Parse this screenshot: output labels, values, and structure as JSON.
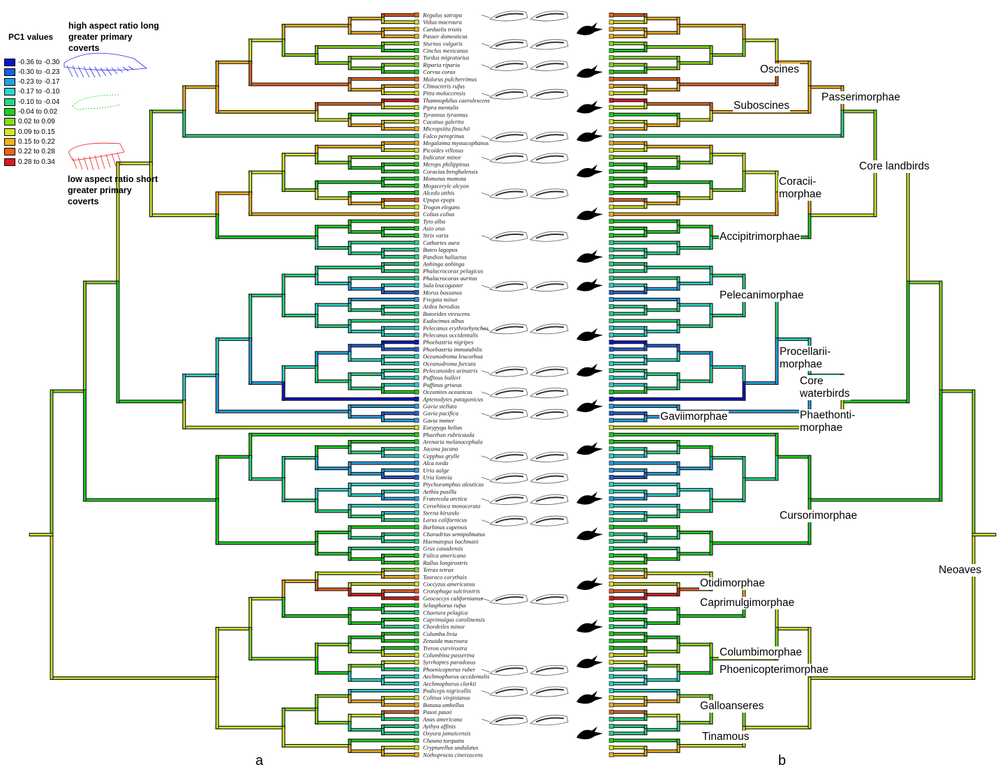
{
  "legend": {
    "title": "PC1 values",
    "bins": [
      {
        "label": "-0.36 to -0.30",
        "color": "#0d12c8"
      },
      {
        "label": "-0.30 to -0.23",
        "color": "#1f5de0"
      },
      {
        "label": "-0.23 to -0.17",
        "color": "#21a4e4"
      },
      {
        "label": "-0.17 to -0.10",
        "color": "#2ad6c9"
      },
      {
        "label": "-0.10 to -0.04",
        "color": "#26d884"
      },
      {
        "label": "-0.04 to 0.02",
        "color": "#1bd21c"
      },
      {
        "label": "0.02 to 0.09",
        "color": "#86da1f"
      },
      {
        "label": "0.09 to 0.15",
        "color": "#d6e622"
      },
      {
        "label": "0.15 to 0.22",
        "color": "#f3b11b"
      },
      {
        "label": "0.22 to 0.28",
        "color": "#e8621b"
      },
      {
        "label": "0.28 to 0.34",
        "color": "#e0181a"
      }
    ],
    "high_note": "high aspect ratio long greater primary coverts",
    "low_note": "low aspect ratio short greater primary coverts"
  },
  "panels": {
    "a": "a",
    "b": "b"
  },
  "taxa": [
    {
      "name": "Regulus satrapa",
      "pc": 9
    },
    {
      "name": "Vidua macroura",
      "pc": 7
    },
    {
      "name": "Carduelis tristis",
      "pc": 8
    },
    {
      "name": "Passer domesticus",
      "pc": 8
    },
    {
      "name": "Sturnus vulgaris",
      "pc": 6
    },
    {
      "name": "Cinclus mexicanus",
      "pc": 5
    },
    {
      "name": "Turdus migratorius",
      "pc": 6
    },
    {
      "name": "Riparia riparia",
      "pc": 6
    },
    {
      "name": "Corvus corax",
      "pc": 5
    },
    {
      "name": "Malurus pulcherrimus",
      "pc": 9
    },
    {
      "name": "Climacteris rufus",
      "pc": 8
    },
    {
      "name": "Pitta moluccensis",
      "pc": 7
    },
    {
      "name": "Thamnophilus caerulescens",
      "pc": 10
    },
    {
      "name": "Pipra mentalis",
      "pc": 7
    },
    {
      "name": "Tyrannus tyrannus",
      "pc": 5
    },
    {
      "name": "Cacatua galerita",
      "pc": 7
    },
    {
      "name": "Micropsitta finschii",
      "pc": 8
    },
    {
      "name": "Falco peregrinus",
      "pc": 4
    },
    {
      "name": "Megalaima mystacophanos",
      "pc": 8
    },
    {
      "name": "Picoides villosus",
      "pc": 7
    },
    {
      "name": "Indicator minor",
      "pc": 6
    },
    {
      "name": "Merops philippinus",
      "pc": 5
    },
    {
      "name": "Coracias benghalensis",
      "pc": 5
    },
    {
      "name": "Momotus momota",
      "pc": 5
    },
    {
      "name": "Megaceryle alcyon",
      "pc": 5
    },
    {
      "name": "Alcedo atthis",
      "pc": 5
    },
    {
      "name": "Upupa epops",
      "pc": 9
    },
    {
      "name": "Trogon elegans",
      "pc": 7
    },
    {
      "name": "Colius colius",
      "pc": 8
    },
    {
      "name": "Tyto alba",
      "pc": 5
    },
    {
      "name": "Asio otus",
      "pc": 5
    },
    {
      "name": "Strix varia",
      "pc": 5
    },
    {
      "name": "Cathartes aura",
      "pc": 4
    },
    {
      "name": "Buteo lagopus",
      "pc": 4
    },
    {
      "name": "Pandion haliaetus",
      "pc": 4
    },
    {
      "name": "Anhinga anhinga",
      "pc": 4
    },
    {
      "name": "Phalacrocorax pelagicus",
      "pc": 4
    },
    {
      "name": "Phalacrocorax auritus",
      "pc": 4
    },
    {
      "name": "Sula leucogaster",
      "pc": 3
    },
    {
      "name": "Morus bassanus",
      "pc": 1
    },
    {
      "name": "Fregata minor",
      "pc": 2
    },
    {
      "name": "Ardea herodias",
      "pc": 4
    },
    {
      "name": "Butorides virescens",
      "pc": 4
    },
    {
      "name": "Eudocimus albus",
      "pc": 4
    },
    {
      "name": "Pelecanus erythrorhynchos",
      "pc": 3
    },
    {
      "name": "Pelecanus occidentalis",
      "pc": 3
    },
    {
      "name": "Phoebastria nigripes",
      "pc": 0
    },
    {
      "name": "Phoebastria immutabilis",
      "pc": 1
    },
    {
      "name": "Oceanodroma leucorhoa",
      "pc": 3
    },
    {
      "name": "Oceanodroma furcata",
      "pc": 3
    },
    {
      "name": "Pelecanoides urinatrix",
      "pc": 4
    },
    {
      "name": "Puffinus bulleri",
      "pc": 3
    },
    {
      "name": "Puffinus griseus",
      "pc": 3
    },
    {
      "name": "Oceanites oceanicus",
      "pc": 5
    },
    {
      "name": "Aptenodytes patagonicus",
      "pc": 0
    },
    {
      "name": "Gavia stellata",
      "pc": 2
    },
    {
      "name": "Gavia pacifica",
      "pc": 1
    },
    {
      "name": "Gavia immer",
      "pc": 2
    },
    {
      "name": "Eurypyga helias",
      "pc": 7
    },
    {
      "name": "Phaethon rubricauda",
      "pc": 5
    },
    {
      "name": "Arenaria melanocephala",
      "pc": 5
    },
    {
      "name": "Jacana jacana",
      "pc": 4
    },
    {
      "name": "Cepphus grylle",
      "pc": 3
    },
    {
      "name": "Alca torda",
      "pc": 2
    },
    {
      "name": "Uria aalge",
      "pc": 2
    },
    {
      "name": "Uria lomvia",
      "pc": 1
    },
    {
      "name": "Ptychoramphus aleuticus",
      "pc": 3
    },
    {
      "name": "Aethia pusilla",
      "pc": 3
    },
    {
      "name": "Fratercula arctica",
      "pc": 2
    },
    {
      "name": "Cerorhinca monocerata",
      "pc": 3
    },
    {
      "name": "Sterna hirundo",
      "pc": 3
    },
    {
      "name": "Larus californicus",
      "pc": 4
    },
    {
      "name": "Burhinus capensis",
      "pc": 5
    },
    {
      "name": "Charadrius semipalmatus",
      "pc": 4
    },
    {
      "name": "Haematopus bachmani",
      "pc": 4
    },
    {
      "name": "Grus canadensis",
      "pc": 4
    },
    {
      "name": "Fulica americana",
      "pc": 5
    },
    {
      "name": "Rallus longirostris",
      "pc": 5
    },
    {
      "name": "Tetrax tetrax",
      "pc": 6
    },
    {
      "name": "Tauraco corythaix",
      "pc": 8
    },
    {
      "name": "Coccyzus americanus",
      "pc": 7
    },
    {
      "name": "Crotophaga sulcirostris",
      "pc": 9
    },
    {
      "name": "Geococcyx californianus",
      "pc": 10
    },
    {
      "name": "Selasphorus rufus",
      "pc": 5
    },
    {
      "name": "Chaetura pelagica",
      "pc": 4
    },
    {
      "name": "Caprimulgus carolinensis",
      "pc": 5
    },
    {
      "name": "Chordeiles minor",
      "pc": 4
    },
    {
      "name": "Columba livia",
      "pc": 5
    },
    {
      "name": "Zenaida macroura",
      "pc": 5
    },
    {
      "name": "Treron curvirostra",
      "pc": 5
    },
    {
      "name": "Columbina passerina",
      "pc": 7
    },
    {
      "name": "Syrrhaptes paradoxus",
      "pc": 7
    },
    {
      "name": "Phoenicopterus ruber",
      "pc": 4
    },
    {
      "name": "Aechmophorus occidentalis",
      "pc": 3
    },
    {
      "name": "Aechmophorus clarkii",
      "pc": 3
    },
    {
      "name": "Podiceps nigricollis",
      "pc": 3
    },
    {
      "name": "Colinus virginianus",
      "pc": 7
    },
    {
      "name": "Bonasa umbellus",
      "pc": 8
    },
    {
      "name": "Pauxi pauxi",
      "pc": 9
    },
    {
      "name": "Anas americana",
      "pc": 4
    },
    {
      "name": "Aythya affinis",
      "pc": 4
    },
    {
      "name": "Oxyura jamaicensis",
      "pc": 4
    },
    {
      "name": "Chauna torquata",
      "pc": 5
    },
    {
      "name": "Crypturellus undulatus",
      "pc": 7
    },
    {
      "name": "Nothoprocta cinerascens",
      "pc": 8
    }
  ],
  "clades": [
    {
      "label": "Oscines"
    },
    {
      "label": "Passerimorphae"
    },
    {
      "label": "Suboscines"
    },
    {
      "label": "Core landbirds"
    },
    {
      "label": "Coracii-\nmorphae"
    },
    {
      "label": "Accipitrimorphae"
    },
    {
      "label": "Pelecanimorphae"
    },
    {
      "label": "Procellarii-\nmorphae"
    },
    {
      "label": "Core\nwaterbirds"
    },
    {
      "label": "Gaviimorphae"
    },
    {
      "label": "Phaethonti-\nmorphae"
    },
    {
      "label": "Cursorimorphae"
    },
    {
      "label": "Neoaves"
    },
    {
      "label": "Otidimorphae"
    },
    {
      "label": "Caprimulgimorphae"
    },
    {
      "label": "Columbimorphae"
    },
    {
      "label": "Phoenicopterimorphae"
    },
    {
      "label": "Galloanseres"
    },
    {
      "label": "Tinamous"
    }
  ]
}
